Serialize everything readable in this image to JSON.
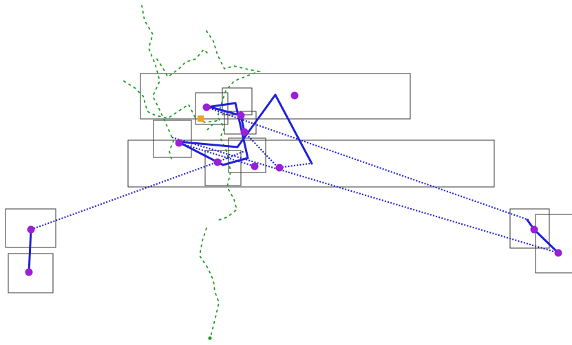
{
  "colors": {
    "background": "#ffffff",
    "box_stroke": "#333333",
    "path": "#1f1fdd",
    "waypoint": "#9b1fd6",
    "trail": "#1f9a1f",
    "marker": "#f0a020"
  },
  "legend": [],
  "labels": []
}
